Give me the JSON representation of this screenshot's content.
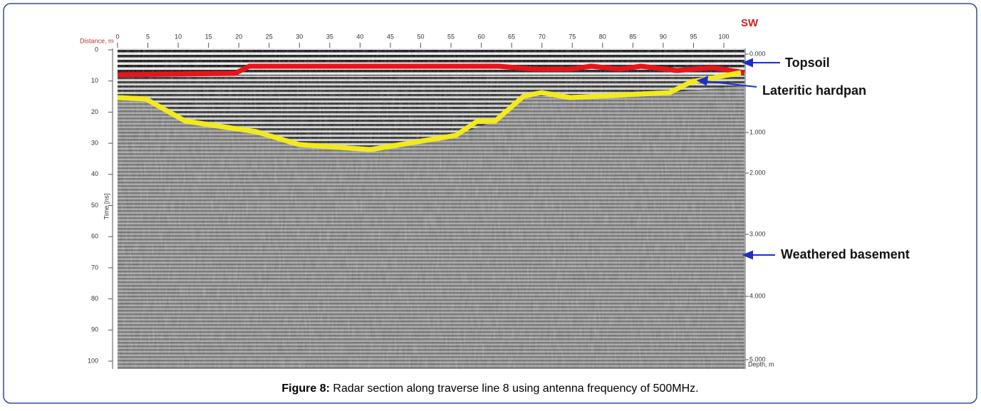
{
  "figure": {
    "corner_label": "SW",
    "x_axis_title": "Distance, m",
    "x_ticks": [
      "0",
      "5",
      "10",
      "15",
      "20",
      "25",
      "30",
      "35",
      "40",
      "45",
      "50",
      "55",
      "60",
      "65",
      "70",
      "75",
      "80",
      "85",
      "90",
      "95",
      "100"
    ],
    "y_axis_title": "Time [ns]",
    "y_ticks": [
      "0",
      "10",
      "20",
      "30",
      "40",
      "50",
      "60",
      "70",
      "80",
      "90",
      "100"
    ],
    "depth_title": "Depth, m",
    "depth_ticks": [
      "0.000",
      "1.000",
      "2.000",
      "3.000",
      "4.000",
      "5.000"
    ],
    "annotations": [
      "Topsoil",
      "Lateritic hardpan",
      "Weathered basement"
    ]
  },
  "caption": {
    "label": "Figure 8:",
    "text": "Radar section along traverse line 8 using antenna frequency of 500MHz."
  }
}
